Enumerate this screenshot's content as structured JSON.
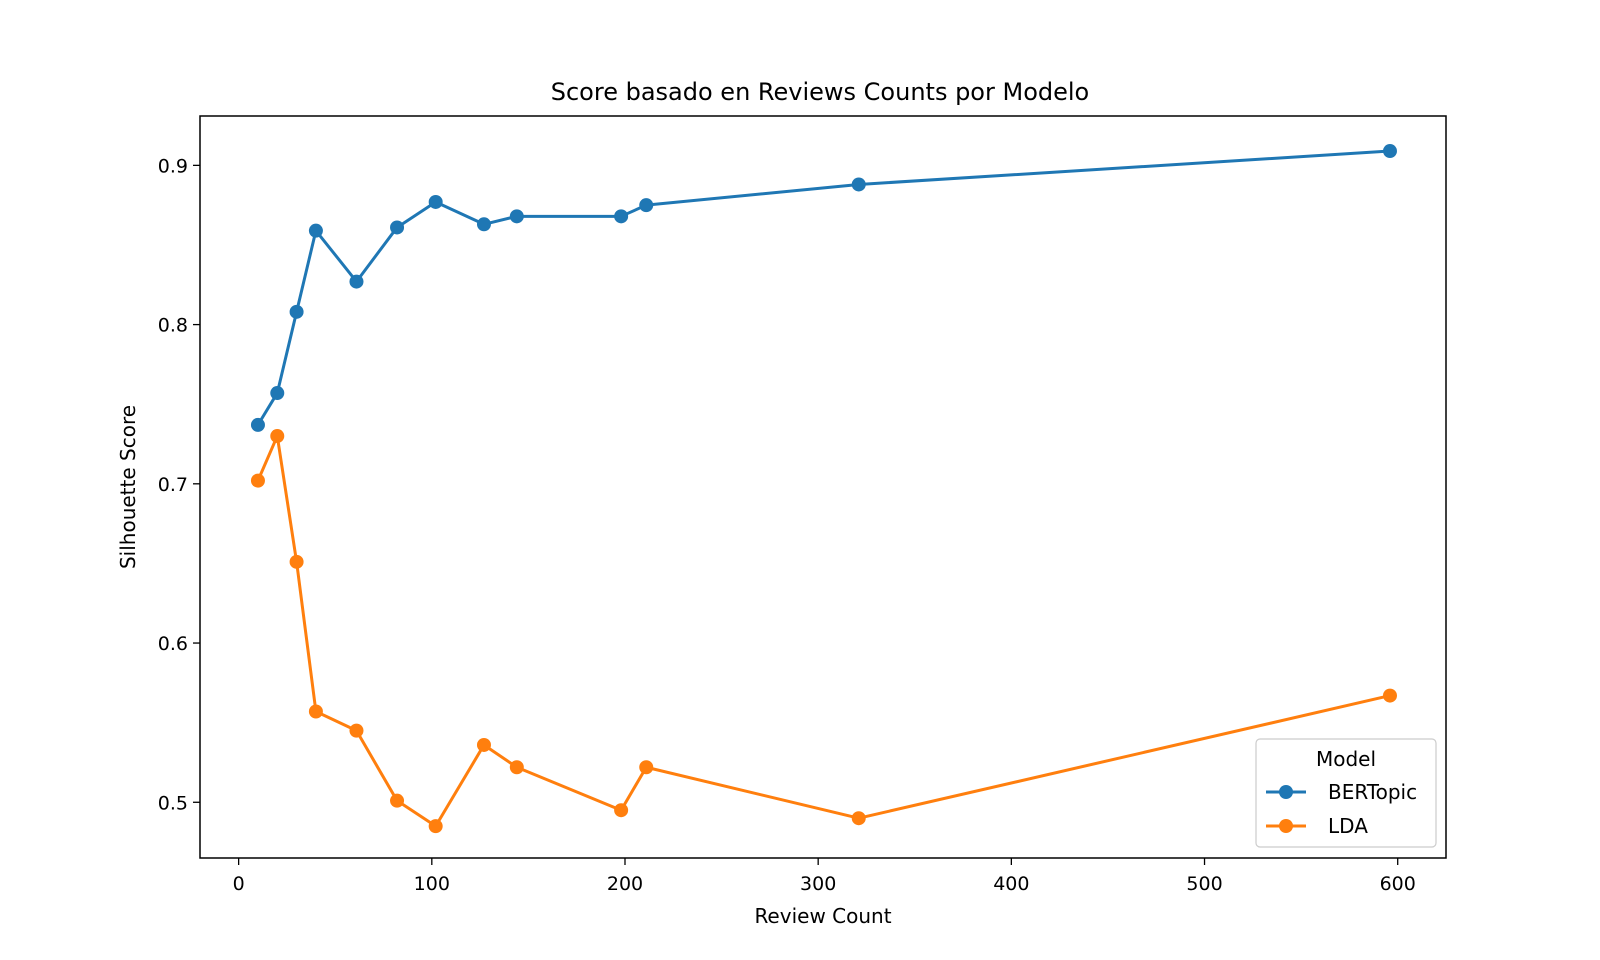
{
  "chart_data": {
    "type": "line",
    "title": "Score basado en Reviews Counts por Modelo",
    "xlabel": "Review Count",
    "ylabel": "Silhouette Score",
    "xlim": [
      -20,
      625
    ],
    "ylim": [
      0.465,
      0.931
    ],
    "xticks": [
      0,
      100,
      200,
      300,
      400,
      500,
      600
    ],
    "xtick_labels": [
      "0",
      "100",
      "200",
      "300",
      "400",
      "500",
      "600"
    ],
    "yticks": [
      0.5,
      0.6,
      0.7,
      0.8,
      0.9
    ],
    "ytick_labels": [
      "0.5",
      "0.6",
      "0.7",
      "0.8",
      "0.9"
    ],
    "grid": false,
    "legend": {
      "title": "Model",
      "placement": "lower-right"
    },
    "series": [
      {
        "name": "BERTopic",
        "color": "#1f77b4",
        "marker": "circle",
        "x": [
          10,
          20,
          30,
          40,
          61,
          82,
          102,
          127,
          144,
          198,
          211,
          321,
          596
        ],
        "y": [
          0.737,
          0.757,
          0.808,
          0.859,
          0.827,
          0.861,
          0.877,
          0.863,
          0.868,
          0.868,
          0.875,
          0.888,
          0.909
        ]
      },
      {
        "name": "LDA",
        "color": "#ff7f0e",
        "marker": "circle",
        "x": [
          10,
          20,
          30,
          40,
          61,
          82,
          102,
          127,
          144,
          198,
          211,
          321,
          596
        ],
        "y": [
          0.702,
          0.73,
          0.651,
          0.557,
          0.545,
          0.501,
          0.485,
          0.536,
          0.522,
          0.495,
          0.522,
          0.49,
          0.567
        ]
      }
    ]
  }
}
